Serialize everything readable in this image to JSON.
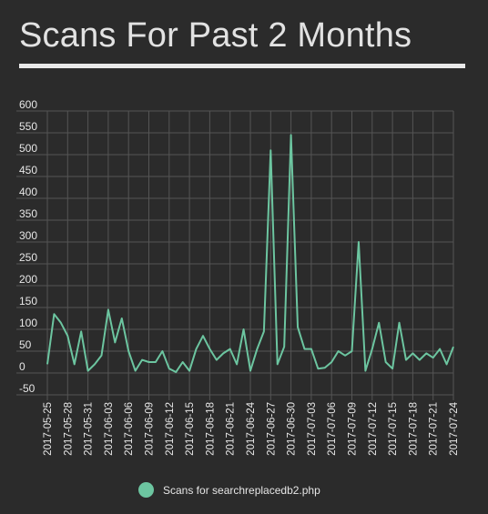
{
  "title": "Scans For Past 2 Months",
  "colors": {
    "background": "#2b2b2b",
    "grid": "#555555",
    "axis_text": "#e6e6e6",
    "series": "#6cc5a0",
    "underline": "#e9e9e9"
  },
  "chart_data": {
    "type": "line",
    "title": "Scans For Past 2 Months",
    "ylim": [
      -50,
      600
    ],
    "yticks": [
      -50,
      0,
      50,
      100,
      150,
      200,
      250,
      300,
      350,
      400,
      450,
      500,
      550,
      600
    ],
    "x": [
      "2017-05-25",
      "2017-05-26",
      "2017-05-27",
      "2017-05-28",
      "2017-05-29",
      "2017-05-30",
      "2017-05-31",
      "2017-06-01",
      "2017-06-02",
      "2017-06-03",
      "2017-06-04",
      "2017-06-05",
      "2017-06-06",
      "2017-06-07",
      "2017-06-08",
      "2017-06-09",
      "2017-06-10",
      "2017-06-11",
      "2017-06-12",
      "2017-06-13",
      "2017-06-14",
      "2017-06-15",
      "2017-06-16",
      "2017-06-17",
      "2017-06-18",
      "2017-06-19",
      "2017-06-20",
      "2017-06-21",
      "2017-06-22",
      "2017-06-23",
      "2017-06-24",
      "2017-06-25",
      "2017-06-26",
      "2017-06-27",
      "2017-06-28",
      "2017-06-29",
      "2017-06-30",
      "2017-07-01",
      "2017-07-02",
      "2017-07-03",
      "2017-07-04",
      "2017-07-05",
      "2017-07-06",
      "2017-07-07",
      "2017-07-08",
      "2017-07-09",
      "2017-07-10",
      "2017-07-11",
      "2017-07-12",
      "2017-07-13",
      "2017-07-14",
      "2017-07-15",
      "2017-07-16",
      "2017-07-17",
      "2017-07-18",
      "2017-07-19",
      "2017-07-20",
      "2017-07-21",
      "2017-07-22",
      "2017-07-23",
      "2017-07-24"
    ],
    "xtick_labels": [
      "2017-05-25",
      "2017-05-28",
      "2017-05-31",
      "2017-06-03",
      "2017-06-06",
      "2017-06-09",
      "2017-06-12",
      "2017-06-15",
      "2017-06-18",
      "2017-06-21",
      "2017-06-24",
      "2017-06-27",
      "2017-06-30",
      "2017-07-03",
      "2017-07-06",
      "2017-07-09",
      "2017-07-12",
      "2017-07-15",
      "2017-07-18",
      "2017-07-21",
      "2017-07-24"
    ],
    "series": [
      {
        "name": "Scans for searchreplacedb2.php",
        "values": [
          20,
          135,
          115,
          85,
          20,
          95,
          5,
          20,
          40,
          145,
          70,
          125,
          50,
          5,
          30,
          25,
          25,
          50,
          10,
          2,
          25,
          5,
          55,
          85,
          55,
          30,
          45,
          55,
          20,
          100,
          5,
          55,
          95,
          510,
          20,
          60,
          545,
          105,
          55,
          55,
          10,
          12,
          25,
          50,
          40,
          50,
          300,
          5,
          55,
          115,
          25,
          10,
          115,
          30,
          45,
          30,
          45,
          35,
          55,
          20,
          60
        ]
      }
    ],
    "grid": true,
    "legend_position": "bottom-center"
  }
}
